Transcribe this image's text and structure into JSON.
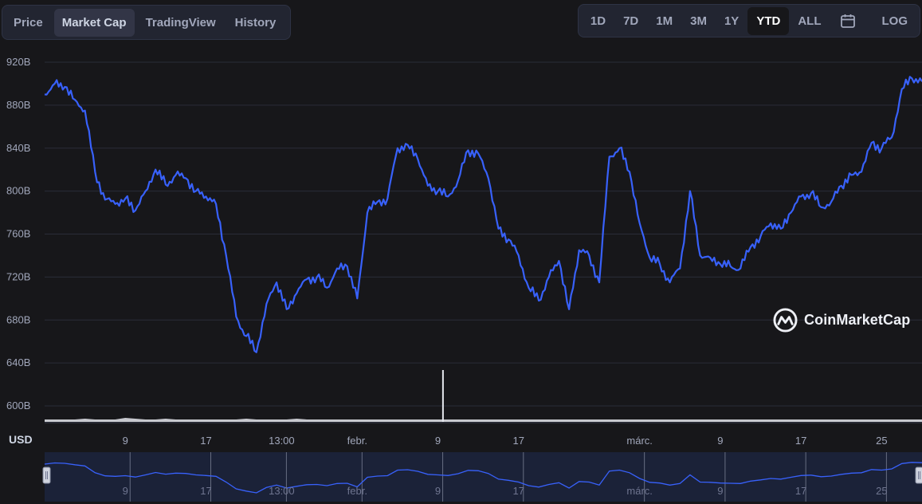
{
  "tabs": [
    {
      "label": "Price",
      "active": false
    },
    {
      "label": "Market Cap",
      "active": true
    },
    {
      "label": "TradingView",
      "active": false
    },
    {
      "label": "History",
      "active": false
    }
  ],
  "ranges": [
    {
      "label": "1D",
      "active": false
    },
    {
      "label": "7D",
      "active": false
    },
    {
      "label": "1M",
      "active": false
    },
    {
      "label": "3M",
      "active": false
    },
    {
      "label": "1Y",
      "active": false
    },
    {
      "label": "YTD",
      "active": true
    },
    {
      "label": "ALL",
      "active": false
    }
  ],
  "calendar_icon": "calendar-icon",
  "log_label": "LOG",
  "currency_label": "USD",
  "watermark": {
    "text": "CoinMarketCap",
    "icon": "coinmarketcap-logo-icon"
  },
  "colors": {
    "line": "#3861fb",
    "volume": "#e6e8ee",
    "accent": "#3861fb"
  },
  "chart_data": {
    "type": "line",
    "ylim": [
      580,
      925
    ],
    "yticks": [
      "920B",
      "880B",
      "840B",
      "800B",
      "760B",
      "720B",
      "680B",
      "640B",
      "600B"
    ],
    "ytick_values": [
      920,
      880,
      840,
      800,
      760,
      720,
      680,
      640,
      600
    ],
    "xlim": [
      1,
      88
    ],
    "xticks": [
      {
        "label": "9",
        "x": 9
      },
      {
        "label": "17",
        "x": 17
      },
      {
        "label": "13:00",
        "x": 24.5
      },
      {
        "label": "febr.",
        "x": 32
      },
      {
        "label": "9",
        "x": 40
      },
      {
        "label": "17",
        "x": 48
      },
      {
        "label": "márc.",
        "x": 60
      },
      {
        "label": "9",
        "x": 68
      },
      {
        "label": "17",
        "x": 76
      },
      {
        "label": "25",
        "x": 84
      }
    ],
    "grid": true,
    "series": [
      {
        "x": [
          1,
          2,
          3,
          4,
          5,
          6,
          7,
          8,
          9,
          10,
          11,
          12,
          13,
          14,
          15,
          16,
          17,
          18,
          19,
          20,
          21,
          22,
          23,
          24,
          25,
          26,
          27,
          28,
          29,
          30,
          31,
          32,
          33,
          34,
          35,
          36,
          37,
          38,
          39,
          40,
          41,
          42,
          43,
          44,
          45,
          46,
          47,
          48,
          49,
          50,
          51,
          52,
          53,
          54,
          55,
          56,
          57,
          58,
          59,
          60,
          61,
          62,
          63,
          64,
          65,
          66,
          67,
          68,
          69,
          70,
          71,
          72,
          73,
          74,
          75,
          76,
          77,
          78,
          79,
          80,
          81,
          82,
          83,
          84,
          85,
          86,
          87,
          88
        ],
        "values": [
          890,
          900,
          897,
          885,
          875,
          818,
          792,
          788,
          793,
          782,
          800,
          820,
          806,
          815,
          812,
          800,
          795,
          788,
          740,
          683,
          665,
          650,
          695,
          715,
          690,
          705,
          718,
          720,
          710,
          728,
          730,
          700,
          780,
          790,
          793,
          840,
          843,
          830,
          805,
          800,
          795,
          810,
          838,
          835,
          812,
          765,
          755,
          740,
          710,
          698,
          720,
          735,
          690,
          745,
          740,
          715,
          832,
          840,
          818,
          770,
          738,
          732,
          715,
          728,
          800,
          740,
          738,
          732,
          730,
          728,
          748,
          758,
          770,
          765,
          780,
          795,
          798,
          785,
          790,
          805,
          815,
          818,
          845,
          840,
          850,
          895,
          905,
          902
        ]
      }
    ],
    "volume": [
      3,
      3,
      3,
      3,
      4,
      3,
      3,
      3,
      5,
      4,
      3,
      3,
      4,
      3,
      3,
      3,
      3,
      3,
      3,
      3,
      4,
      3,
      3,
      3,
      3,
      4,
      3,
      3,
      3,
      3,
      3,
      3,
      3,
      3,
      3,
      3,
      3,
      3,
      3,
      3,
      3,
      3,
      3,
      3,
      3,
      3,
      3,
      3,
      3,
      3,
      3,
      3,
      3,
      3,
      3,
      3,
      3,
      3,
      3,
      3,
      3,
      3,
      3,
      3,
      3,
      3,
      3,
      3,
      3,
      3,
      3,
      3,
      3,
      3,
      3,
      3,
      3,
      3,
      3,
      3,
      3,
      3,
      3,
      3,
      3,
      3,
      3,
      3
    ],
    "volume_spike": {
      "x": 40.5,
      "value": 50
    }
  },
  "navigator": {
    "xticks": [
      "9",
      "17",
      "13:00",
      "febr.",
      "9",
      "17",
      "márc.",
      "9",
      "17",
      "25"
    ]
  }
}
